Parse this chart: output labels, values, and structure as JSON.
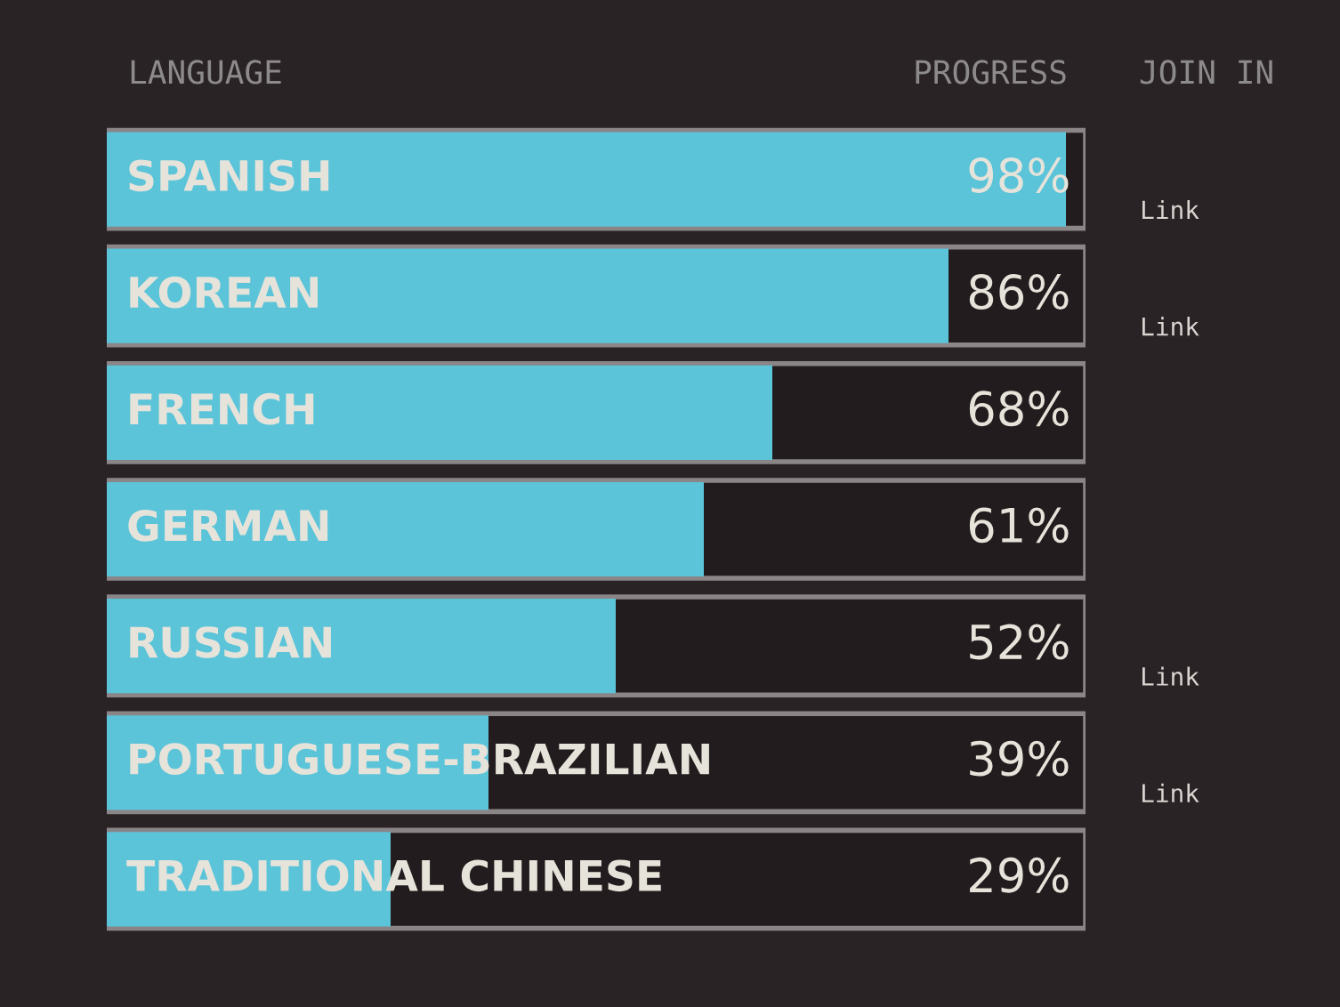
{
  "chart_data": {
    "type": "bar",
    "orientation": "horizontal",
    "categories": [
      "SPANISH",
      "KOREAN",
      "FRENCH",
      "GERMAN",
      "RUSSIAN",
      "PORTUGUESE-BRAZILIAN",
      "TRADITIONAL CHINESE"
    ],
    "values": [
      98,
      86,
      68,
      61,
      52,
      39,
      29
    ],
    "value_labels": [
      "98%",
      "86%",
      "68%",
      "61%",
      "52%",
      "39%",
      "29%"
    ],
    "color": "#5bc4d9",
    "xlim": [
      0,
      100
    ],
    "annotations": [
      "LANGUAGE",
      "PROGRESS",
      "JOIN IN",
      "Link",
      "Link",
      "Link",
      "Link"
    ],
    "legend": false,
    "tick_labels": false
  }
}
